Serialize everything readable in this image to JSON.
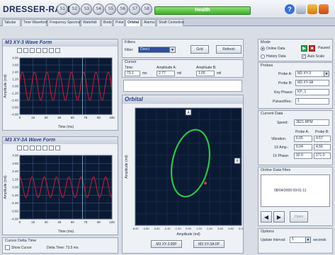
{
  "app": {
    "logo": "DRESSER-RAND",
    "health": "Health"
  },
  "sensors": [
    "S1",
    "S2",
    "S3",
    "S4",
    "S5",
    "S6",
    "S7",
    "S8"
  ],
  "tabs": [
    {
      "label": "Tabular"
    },
    {
      "label": "Time Waveform"
    },
    {
      "label": "Frequency Spectrum"
    },
    {
      "label": "Waterfall"
    },
    {
      "label": "Bode"
    },
    {
      "label": "Polar"
    },
    {
      "label": "Orbital"
    },
    {
      "label": "Alarms"
    },
    {
      "label": "Shaft Centerline"
    }
  ],
  "left": {
    "wave1": {
      "title": "M3 XY-3 Wave Form",
      "ylabel": "Amplitude (mil)",
      "xlabel": "Time (ms)",
      "yticks": [
        "4.00",
        "3.60",
        "2.40",
        "1.20",
        "0.00",
        "-1.20",
        "-2.40",
        "-3.60",
        "-4.00"
      ],
      "xticks": [
        "0",
        "15",
        "30",
        "45",
        "60",
        "75",
        "90",
        "105"
      ]
    },
    "wave2": {
      "title": "M3 XY-3A Wave Form",
      "ylabel": "Amplitude (mil)",
      "xlabel": "Time (ms)",
      "yticks": [
        "4.00",
        "3.60",
        "2.40",
        "1.20",
        "0.00",
        "-1.20",
        "-2.40",
        "-3.60",
        "-4.00"
      ],
      "xticks": [
        "0",
        "15",
        "30",
        "45",
        "60",
        "75",
        "90",
        "105"
      ]
    },
    "cursor_group": "Cursor Delta Time",
    "show_cursor": "Show Cursor",
    "delta_time": "Delta Time: 73.5 ms"
  },
  "middle": {
    "filters_label": "Filters",
    "filter_label": "Filter:",
    "filter_value": "Direct",
    "grid_btn": "Grid",
    "refresh_btn": "Refresh",
    "cursor_label": "Cursor",
    "time_label": "Time:",
    "time_value": "73.1",
    "time_unit": "ms",
    "ampA_label": "Amplitude A:",
    "ampA_value": "2.77",
    "ampA_unit": "mil",
    "ampB_label": "Amplitude B:",
    "ampB_value": "1.05",
    "ampB_unit": "mil",
    "orbital_title": "Orbital",
    "orbit": {
      "ylabel": "Amplitude (mil)",
      "xlabel": "Amplitude (mil)",
      "xticks": [
        "-6.00",
        "-4.80",
        "-3.60",
        "-2.40",
        "-1.20",
        "0.00",
        "1.20",
        "2.40",
        "3.60",
        "4.80",
        "6.00"
      ],
      "top_marker": "A",
      "right_marker": "B"
    },
    "probe_btn1": "M3 XY-3:90P",
    "probe_btn2": "M3 XY-3A:0P"
  },
  "right": {
    "mode_label": "Mode",
    "online": "Online Data",
    "history": "History Data",
    "paused": "Paused",
    "autoscale": "Auto Scale",
    "probes_label": "Probes",
    "probeA_label": "Probe A:",
    "probeA_value": "M3 XY-3",
    "probeB_label": "Probe B:",
    "probeB_value": "M3 XY-3A",
    "keyphasor_label": "Key Phasor:",
    "keyphasor_value": "KP_1",
    "pulses_label": "Pulses/Rev.:",
    "pulses_value": "1",
    "current_label": "Current Data",
    "speed_label": "Speed:",
    "speed_value": "3621 RPM",
    "probeA_col": "Probe A:",
    "probeB_col": "Probe B:",
    "vib_label": "Vibration:",
    "vib_a": "6.05",
    "vib_b": "4.57",
    "amp1x_label": "1X Amp.:",
    "amp1x_a": "6.04",
    "amp1x_b": "4.55",
    "phase1x_label": "1X Phase:",
    "phase1x_a": "92.0",
    "phase1x_b": "171.0",
    "files_label": "Online Data Files",
    "file_time": "08/04/2009 09:01:11",
    "open_btn": "Open",
    "options_label": "Options",
    "update_label": "Update Interval:",
    "update_value": "5",
    "update_unit": "seconds"
  },
  "colors": {
    "wave": "#c8203a",
    "orbit": "#30c24a",
    "plotbg": "#0b1a33",
    "grid": "#3f5d8a"
  }
}
